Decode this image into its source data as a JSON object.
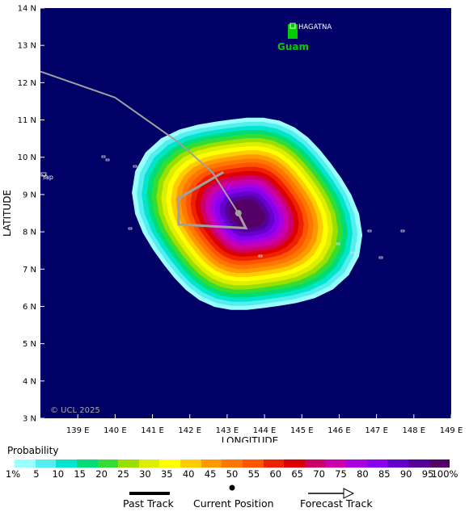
{
  "map": {
    "place_labels": {
      "guam": "Guam",
      "hagatna": "HAGATNA",
      "yap": "Yap"
    },
    "copyright": "© UCL 2025",
    "x_axis": {
      "title": "LONGITUDE",
      "ticks": [
        "139 E",
        "140 E",
        "141 E",
        "142 E",
        "143 E",
        "144 E",
        "145 E",
        "146 E",
        "147 E",
        "148 E",
        "149 E"
      ]
    },
    "y_axis": {
      "title": "LATITUDE",
      "ticks": [
        "14 N",
        "13 N",
        "12 N",
        "11 N",
        "10 N",
        "9 N",
        "8 N",
        "7 N",
        "6 N",
        "5 N",
        "4 N",
        "3 N"
      ]
    },
    "colors": {
      "ocean": "#000066",
      "guam": "#00cc00",
      "track": "#a0a0a0"
    },
    "past_track": [
      [
        138,
        12.3
      ],
      [
        140,
        11.6
      ],
      [
        141.7,
        10.4
      ],
      [
        142.6,
        9.6
      ],
      [
        143.3,
        8.5
      ]
    ],
    "forecast_track": [
      [
        143.3,
        8.5
      ],
      [
        143.5,
        8.1
      ],
      [
        141.7,
        8.2
      ],
      [
        141.7,
        8.9
      ],
      [
        142.9,
        9.6
      ]
    ],
    "current_position": [
      143.3,
      8.5
    ]
  },
  "legend": {
    "title": "Probability",
    "levels": [
      "1%",
      "5",
      "10",
      "15",
      "20",
      "25",
      "30",
      "35",
      "40",
      "45",
      "50",
      "55",
      "60",
      "65",
      "70",
      "75",
      "80",
      "85",
      "90",
      "95",
      "100%"
    ],
    "colors": [
      "#99ffff",
      "#55eeee",
      "#00e5cc",
      "#00dd77",
      "#33dd33",
      "#99e000",
      "#ddee00",
      "#ffff00",
      "#ffcc00",
      "#ff9900",
      "#ff7700",
      "#ff5500",
      "#ee2200",
      "#dd0000",
      "#cc0066",
      "#cc00aa",
      "#aa00dd",
      "#8800ee",
      "#6600cc",
      "#550099",
      "#550066"
    ],
    "past_track_label": "Past Track",
    "current_position_label": "Current Position",
    "forecast_track_label": "Forecast Track"
  }
}
